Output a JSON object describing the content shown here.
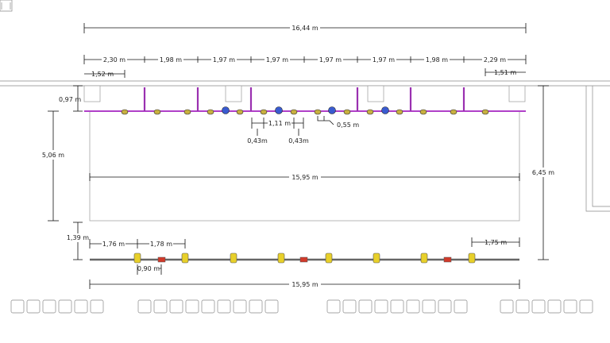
{
  "top_overall": "16,44 m",
  "top_segments": [
    "2,30 m",
    "1,98 m",
    "1,97 m",
    "1,97 m",
    "1,97 m",
    "1,97 m",
    "1,98 m",
    "2,29 m"
  ],
  "left_offset": "1,52 m",
  "right_offset": "1,51 m",
  "truss_height_offset": "0,97 m",
  "spacing_a": "1,11 m",
  "spacing_b": "0,43m",
  "spacing_c": "0,43m",
  "spacing_d": "0,55 m",
  "stage_width_upper": "15,95 m",
  "left_height": "5,06 m",
  "right_height": "6,45 m",
  "floor_truss_offset": "1,39 m",
  "floor_left_1": "1,76 m",
  "floor_left_2": "1,78 m",
  "floor_right": "1,75 m",
  "floor_small": "0,90 m",
  "stage_width_lower": "15,95 m",
  "colors": {
    "truss": "#b040c8",
    "fixture_yellow": "#e8d02a",
    "fixture_red": "#d23a2a",
    "fixture_blue": "#3a5bd0"
  }
}
